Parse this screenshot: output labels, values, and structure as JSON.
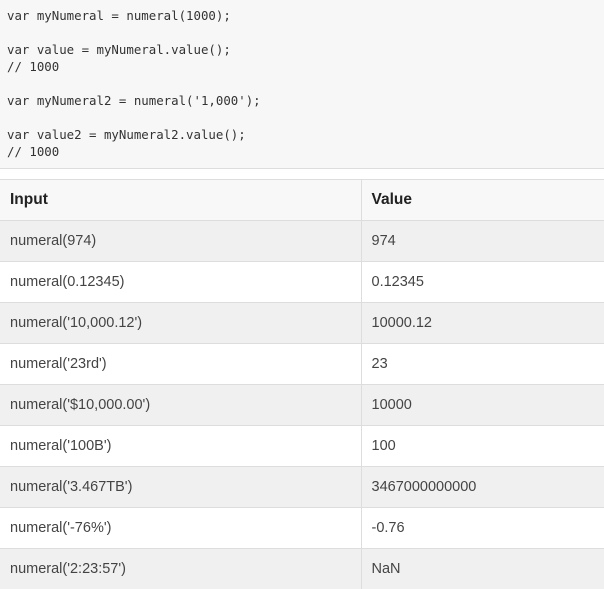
{
  "code": "var myNumeral = numeral(1000);\n\nvar value = myNumeral.value();\n// 1000\n\nvar myNumeral2 = numeral('1,000');\n\nvar value2 = myNumeral2.value();\n// 1000",
  "table": {
    "headers": [
      "Input",
      "Value"
    ],
    "rows": [
      [
        "numeral(974)",
        "974"
      ],
      [
        "numeral(0.12345)",
        "0.12345"
      ],
      [
        "numeral('10,000.12')",
        "10000.12"
      ],
      [
        "numeral('23rd')",
        "23"
      ],
      [
        "numeral('$10,000.00')",
        "10000"
      ],
      [
        "numeral('100B')",
        "100"
      ],
      [
        "numeral('3.467TB')",
        "3467000000000"
      ],
      [
        "numeral('-76%')",
        "-0.76"
      ],
      [
        "numeral('2:23:57')",
        "NaN"
      ]
    ]
  }
}
